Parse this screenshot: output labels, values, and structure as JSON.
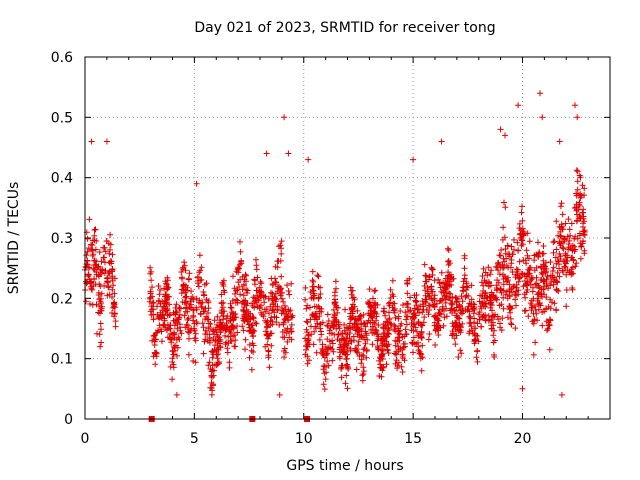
{
  "chart_data": {
    "type": "scatter",
    "title": "Day 021 of 2023, SRMTID for receiver tong",
    "xlabel": "GPS time / hours",
    "ylabel": "SRMTID / TECUs",
    "xlim": [
      0,
      24
    ],
    "ylim": [
      0,
      0.6
    ],
    "xticks": [
      0,
      5,
      10,
      15,
      20
    ],
    "yticks": [
      0,
      0.1,
      0.2,
      0.3,
      0.4,
      0.5,
      0.6
    ],
    "ytick_labels": [
      "0",
      "0.1",
      "0.2",
      "0.3",
      "0.4",
      "0.5",
      "0.6"
    ],
    "grid": true,
    "marker": "+",
    "color": "#e00000",
    "gap_markers_x": [
      3.05,
      7.65,
      10.15
    ],
    "profile": [
      {
        "x": 0.0,
        "mean": 0.22,
        "spread": 0.09
      },
      {
        "x": 0.5,
        "mean": 0.25,
        "spread": 0.1
      },
      {
        "x": 1.0,
        "mean": 0.23,
        "spread": 0.08
      },
      {
        "x": 1.3,
        "mean": 0.21,
        "spread": 0.06
      },
      {
        "x": 3.0,
        "mean": 0.18,
        "spread": 0.08
      },
      {
        "x": 4.0,
        "mean": 0.15,
        "spread": 0.07
      },
      {
        "x": 5.0,
        "mean": 0.2,
        "spread": 0.09
      },
      {
        "x": 6.0,
        "mean": 0.12,
        "spread": 0.07
      },
      {
        "x": 7.0,
        "mean": 0.2,
        "spread": 0.08
      },
      {
        "x": 8.0,
        "mean": 0.17,
        "spread": 0.08
      },
      {
        "x": 9.0,
        "mean": 0.2,
        "spread": 0.09
      },
      {
        "x": 9.4,
        "mean": 0.18,
        "spread": 0.08
      },
      {
        "x": 10.0,
        "mean": 0.2,
        "spread": 0.1
      },
      {
        "x": 11.0,
        "mean": 0.13,
        "spread": 0.06
      },
      {
        "x": 12.0,
        "mean": 0.14,
        "spread": 0.07
      },
      {
        "x": 13.0,
        "mean": 0.15,
        "spread": 0.07
      },
      {
        "x": 14.0,
        "mean": 0.14,
        "spread": 0.07
      },
      {
        "x": 15.0,
        "mean": 0.16,
        "spread": 0.08
      },
      {
        "x": 16.0,
        "mean": 0.2,
        "spread": 0.08
      },
      {
        "x": 17.0,
        "mean": 0.19,
        "spread": 0.07
      },
      {
        "x": 18.0,
        "mean": 0.17,
        "spread": 0.07
      },
      {
        "x": 19.0,
        "mean": 0.22,
        "spread": 0.1
      },
      {
        "x": 20.0,
        "mean": 0.25,
        "spread": 0.1
      },
      {
        "x": 21.0,
        "mean": 0.2,
        "spread": 0.09
      },
      {
        "x": 22.0,
        "mean": 0.28,
        "spread": 0.1
      },
      {
        "x": 22.8,
        "mean": 0.33,
        "spread": 0.09
      }
    ],
    "data_segments": [
      [
        0.0,
        1.4
      ],
      [
        2.95,
        9.5
      ],
      [
        10.05,
        22.85
      ]
    ],
    "point_density_per_hour": 110,
    "outliers": [
      {
        "x": 0.3,
        "y": 0.46
      },
      {
        "x": 1.0,
        "y": 0.46
      },
      {
        "x": 5.1,
        "y": 0.39
      },
      {
        "x": 8.3,
        "y": 0.44
      },
      {
        "x": 9.1,
        "y": 0.5
      },
      {
        "x": 9.3,
        "y": 0.44
      },
      {
        "x": 10.2,
        "y": 0.43
      },
      {
        "x": 15.0,
        "y": 0.43
      },
      {
        "x": 16.3,
        "y": 0.46
      },
      {
        "x": 19.0,
        "y": 0.48
      },
      {
        "x": 19.2,
        "y": 0.47
      },
      {
        "x": 19.8,
        "y": 0.52
      },
      {
        "x": 20.8,
        "y": 0.54
      },
      {
        "x": 20.9,
        "y": 0.5
      },
      {
        "x": 22.4,
        "y": 0.52
      },
      {
        "x": 22.5,
        "y": 0.5
      },
      {
        "x": 21.7,
        "y": 0.46
      },
      {
        "x": 5.8,
        "y": 0.04
      },
      {
        "x": 4.2,
        "y": 0.04
      },
      {
        "x": 8.9,
        "y": 0.04
      },
      {
        "x": 21.8,
        "y": 0.04
      },
      {
        "x": 20.0,
        "y": 0.05
      }
    ]
  }
}
